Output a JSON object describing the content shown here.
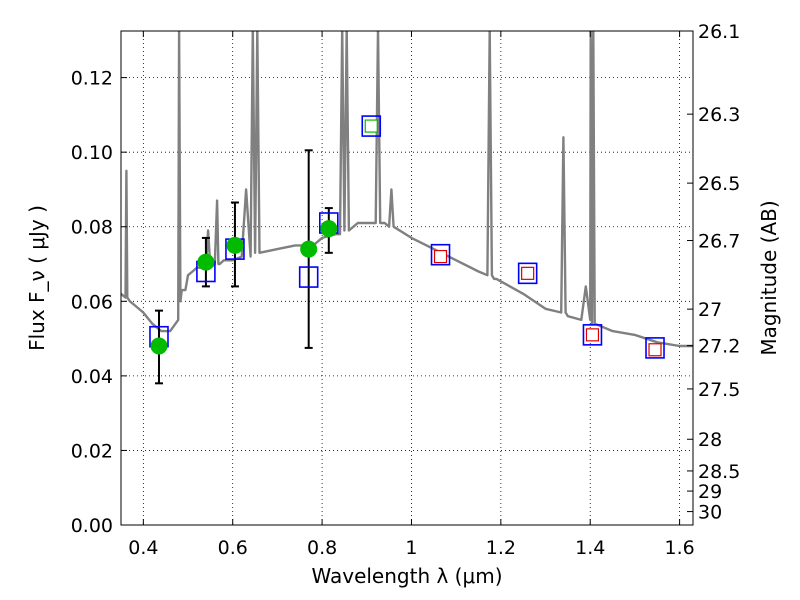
{
  "chart_data": {
    "type": "scatter",
    "title": "",
    "xlabel": "Wavelength  λ (μm)",
    "ylabel": "Flux  F_ν  ( μJy )",
    "y2label": "Magnitude (AB)",
    "xlim": [
      0.35,
      1.63
    ],
    "ylim": [
      0.0,
      0.1325
    ],
    "xticks": [
      0.4,
      0.6,
      0.8,
      1.0,
      1.2,
      1.4,
      1.6
    ],
    "xtick_labels": [
      "0.4",
      "0.6",
      "0.8",
      "1",
      "1.2",
      "1.4",
      "1.6"
    ],
    "yticks": [
      0.0,
      0.02,
      0.04,
      0.06,
      0.08,
      0.1,
      0.12
    ],
    "ytick_labels": [
      "0.00",
      "0.02",
      "0.04",
      "0.06",
      "0.08",
      "0.10",
      "0.12"
    ],
    "y2ticks": [
      {
        "label": "26.1",
        "flux": 0.1325
      },
      {
        "label": "26.3",
        "flux": 0.1102
      },
      {
        "label": "26.5",
        "flux": 0.0917
      },
      {
        "label": "26.7",
        "flux": 0.0763
      },
      {
        "label": "27",
        "flux": 0.0579
      },
      {
        "label": "27.2",
        "flux": 0.0481
      },
      {
        "label": "27.5",
        "flux": 0.0365
      },
      {
        "label": "28",
        "flux": 0.023
      },
      {
        "label": "28.5",
        "flux": 0.0145
      },
      {
        "label": "29",
        "flux": 0.0091
      },
      {
        "label": "30",
        "flux": 0.0036
      }
    ],
    "grid": true,
    "colors": {
      "model": "#808080",
      "observed": "#00bb00",
      "model_box": "#0000ff",
      "predicted": "#dd0000",
      "errorbar": "#000000"
    },
    "series": [
      {
        "name": "model spectrum",
        "kind": "line",
        "x": [
          0.35,
          0.36,
          0.362,
          0.364,
          0.37,
          0.38,
          0.4,
          0.42,
          0.44,
          0.46,
          0.478,
          0.48,
          0.483,
          0.486,
          0.488,
          0.491,
          0.494,
          0.5,
          0.51,
          0.52,
          0.53,
          0.54,
          0.545,
          0.55,
          0.56,
          0.565,
          0.568,
          0.571,
          0.58,
          0.59,
          0.6,
          0.62,
          0.63,
          0.64,
          0.645,
          0.65,
          0.655,
          0.66,
          0.7,
          0.74,
          0.78,
          0.8,
          0.83,
          0.84,
          0.845,
          0.85,
          0.855,
          0.86,
          0.87,
          0.88,
          0.89,
          0.9,
          0.92,
          0.925,
          0.93,
          0.935,
          0.94,
          0.95,
          0.955,
          0.96,
          1.0,
          1.05,
          1.1,
          1.15,
          1.17,
          1.175,
          1.18,
          1.185,
          1.19,
          1.25,
          1.3,
          1.335,
          1.34,
          1.345,
          1.35,
          1.38,
          1.39,
          1.4,
          1.401,
          1.404,
          1.407,
          1.41,
          1.45,
          1.5,
          1.55,
          1.6,
          1.63
        ],
        "y": [
          0.062,
          0.061,
          0.095,
          0.061,
          0.06,
          0.059,
          0.057,
          0.054,
          0.052,
          0.052,
          0.055,
          0.133,
          0.06,
          0.063,
          0.063,
          0.063,
          0.063,
          0.067,
          0.068,
          0.069,
          0.069,
          0.069,
          0.079,
          0.069,
          0.07,
          0.087,
          0.07,
          0.07,
          0.071,
          0.071,
          0.071,
          0.072,
          0.09,
          0.072,
          0.133,
          0.073,
          0.133,
          0.073,
          0.074,
          0.075,
          0.075,
          0.077,
          0.078,
          0.078,
          0.133,
          0.079,
          0.133,
          0.079,
          0.08,
          0.081,
          0.081,
          0.081,
          0.081,
          0.133,
          0.081,
          0.081,
          0.081,
          0.08,
          0.09,
          0.08,
          0.077,
          0.074,
          0.071,
          0.068,
          0.067,
          0.133,
          0.067,
          0.066,
          0.066,
          0.062,
          0.058,
          0.057,
          0.104,
          0.057,
          0.056,
          0.055,
          0.064,
          0.055,
          0.133,
          0.054,
          0.133,
          0.054,
          0.052,
          0.051,
          0.049,
          0.048,
          0.048
        ]
      },
      {
        "name": "observed (green circles)",
        "kind": "points",
        "x": [
          0.435,
          0.54,
          0.605,
          0.77,
          0.815
        ],
        "y": [
          0.048,
          0.0705,
          0.075,
          0.074,
          0.0795
        ],
        "yerr_low": [
          0.038,
          0.064,
          0.064,
          0.0475,
          0.073
        ],
        "yerr_high": [
          0.0575,
          0.077,
          0.0865,
          0.1005,
          0.085
        ]
      },
      {
        "name": "model photometry (blue squares)",
        "kind": "points",
        "x": [
          0.435,
          0.54,
          0.605,
          0.77,
          0.815,
          0.91,
          1.065,
          1.26,
          1.405,
          1.545
        ],
        "y": [
          0.0505,
          0.068,
          0.074,
          0.0665,
          0.081,
          0.107,
          0.0725,
          0.0675,
          0.051,
          0.0475
        ]
      },
      {
        "name": "model photometry (inner markers)",
        "kind": "points",
        "x": [
          0.91,
          1.065,
          1.26,
          1.405,
          1.545
        ],
        "y": [
          0.107,
          0.072,
          0.0675,
          0.051,
          0.047
        ],
        "inner_color": [
          "green",
          "red",
          "red",
          "red",
          "red"
        ]
      }
    ]
  }
}
